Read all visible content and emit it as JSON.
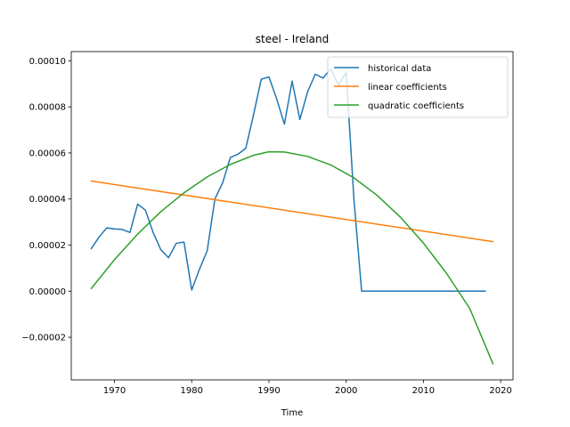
{
  "chart_data": {
    "type": "line",
    "title": "steel - Ireland",
    "xlabel": "Time",
    "ylabel": "",
    "xlim": [
      1964.4,
      2021.6
    ],
    "ylim": [
      -3.85e-05,
      0.000104
    ],
    "xticks": [
      1970,
      1980,
      1990,
      2000,
      2010,
      2020
    ],
    "xtick_labels": [
      "1970",
      "1980",
      "1990",
      "2000",
      "2010",
      "2020"
    ],
    "yticks": [
      -2e-05,
      0.0,
      2e-05,
      4e-05,
      6e-05,
      8e-05,
      0.0001
    ],
    "ytick_labels": [
      "−0.00002",
      "0.00000",
      "0.00002",
      "0.00004",
      "0.00006",
      "0.00008",
      "0.00010"
    ],
    "legend": "top-right",
    "grid": false,
    "series": [
      {
        "name": "historical data",
        "color": "#1f77b4",
        "x": [
          1967,
          1968,
          1969,
          1970,
          1971,
          1972,
          1973,
          1974,
          1975,
          1976,
          1977,
          1978,
          1979,
          1980,
          1981,
          1982,
          1983,
          1984,
          1985,
          1986,
          1987,
          1988,
          1989,
          1990,
          1991,
          1992,
          1993,
          1994,
          1995,
          1996,
          1997,
          1998,
          1999,
          2000,
          2001,
          2002,
          2003,
          2004,
          2005,
          2006,
          2007,
          2008,
          2009,
          2010,
          2011,
          2012,
          2013,
          2014,
          2015,
          2016,
          2017,
          2018
        ],
        "y": [
          1.85e-05,
          2.35e-05,
          2.75e-05,
          2.7e-05,
          2.68e-05,
          2.55e-05,
          3.78e-05,
          3.52e-05,
          2.55e-05,
          1.8e-05,
          1.45e-05,
          2.08e-05,
          2.13e-05,
          5e-07,
          9.5e-06,
          1.75e-05,
          4e-05,
          4.7e-05,
          5.8e-05,
          5.95e-05,
          6.2e-05,
          7.65e-05,
          9.2e-05,
          9.3e-05,
          8.35e-05,
          7.25e-05,
          9.12e-05,
          7.45e-05,
          8.65e-05,
          9.42e-05,
          9.25e-05,
          9.65e-05,
          8.95e-05,
          9.5e-05,
          4e-05,
          0.0,
          0.0,
          0.0,
          0.0,
          0.0,
          0.0,
          0.0,
          0.0,
          0.0,
          0.0,
          0.0,
          0.0,
          0.0,
          0.0,
          0.0,
          0.0,
          0.0
        ]
      },
      {
        "name": "linear coefficients",
        "color": "#ff7f0e",
        "x": [
          1967,
          2019
        ],
        "y": [
          4.78e-05,
          2.15e-05
        ]
      },
      {
        "name": "quadratic coefficients",
        "color": "#2ca02c",
        "x": [
          1967,
          1970,
          1973,
          1976,
          1979,
          1982,
          1985,
          1988,
          1990,
          1992,
          1995,
          1998,
          2001,
          2004,
          2007,
          2010,
          2013,
          2016,
          2019
        ],
        "y": [
          1.2e-06,
          1.37e-05,
          2.48e-05,
          3.45e-05,
          4.27e-05,
          4.96e-05,
          5.5e-05,
          5.9e-05,
          6.05e-05,
          6.04e-05,
          5.85e-05,
          5.48e-05,
          4.92e-05,
          4.16e-05,
          3.22e-05,
          2.09e-05,
          7.7e-06,
          -7.5e-06,
          -3.15e-05
        ]
      }
    ]
  }
}
